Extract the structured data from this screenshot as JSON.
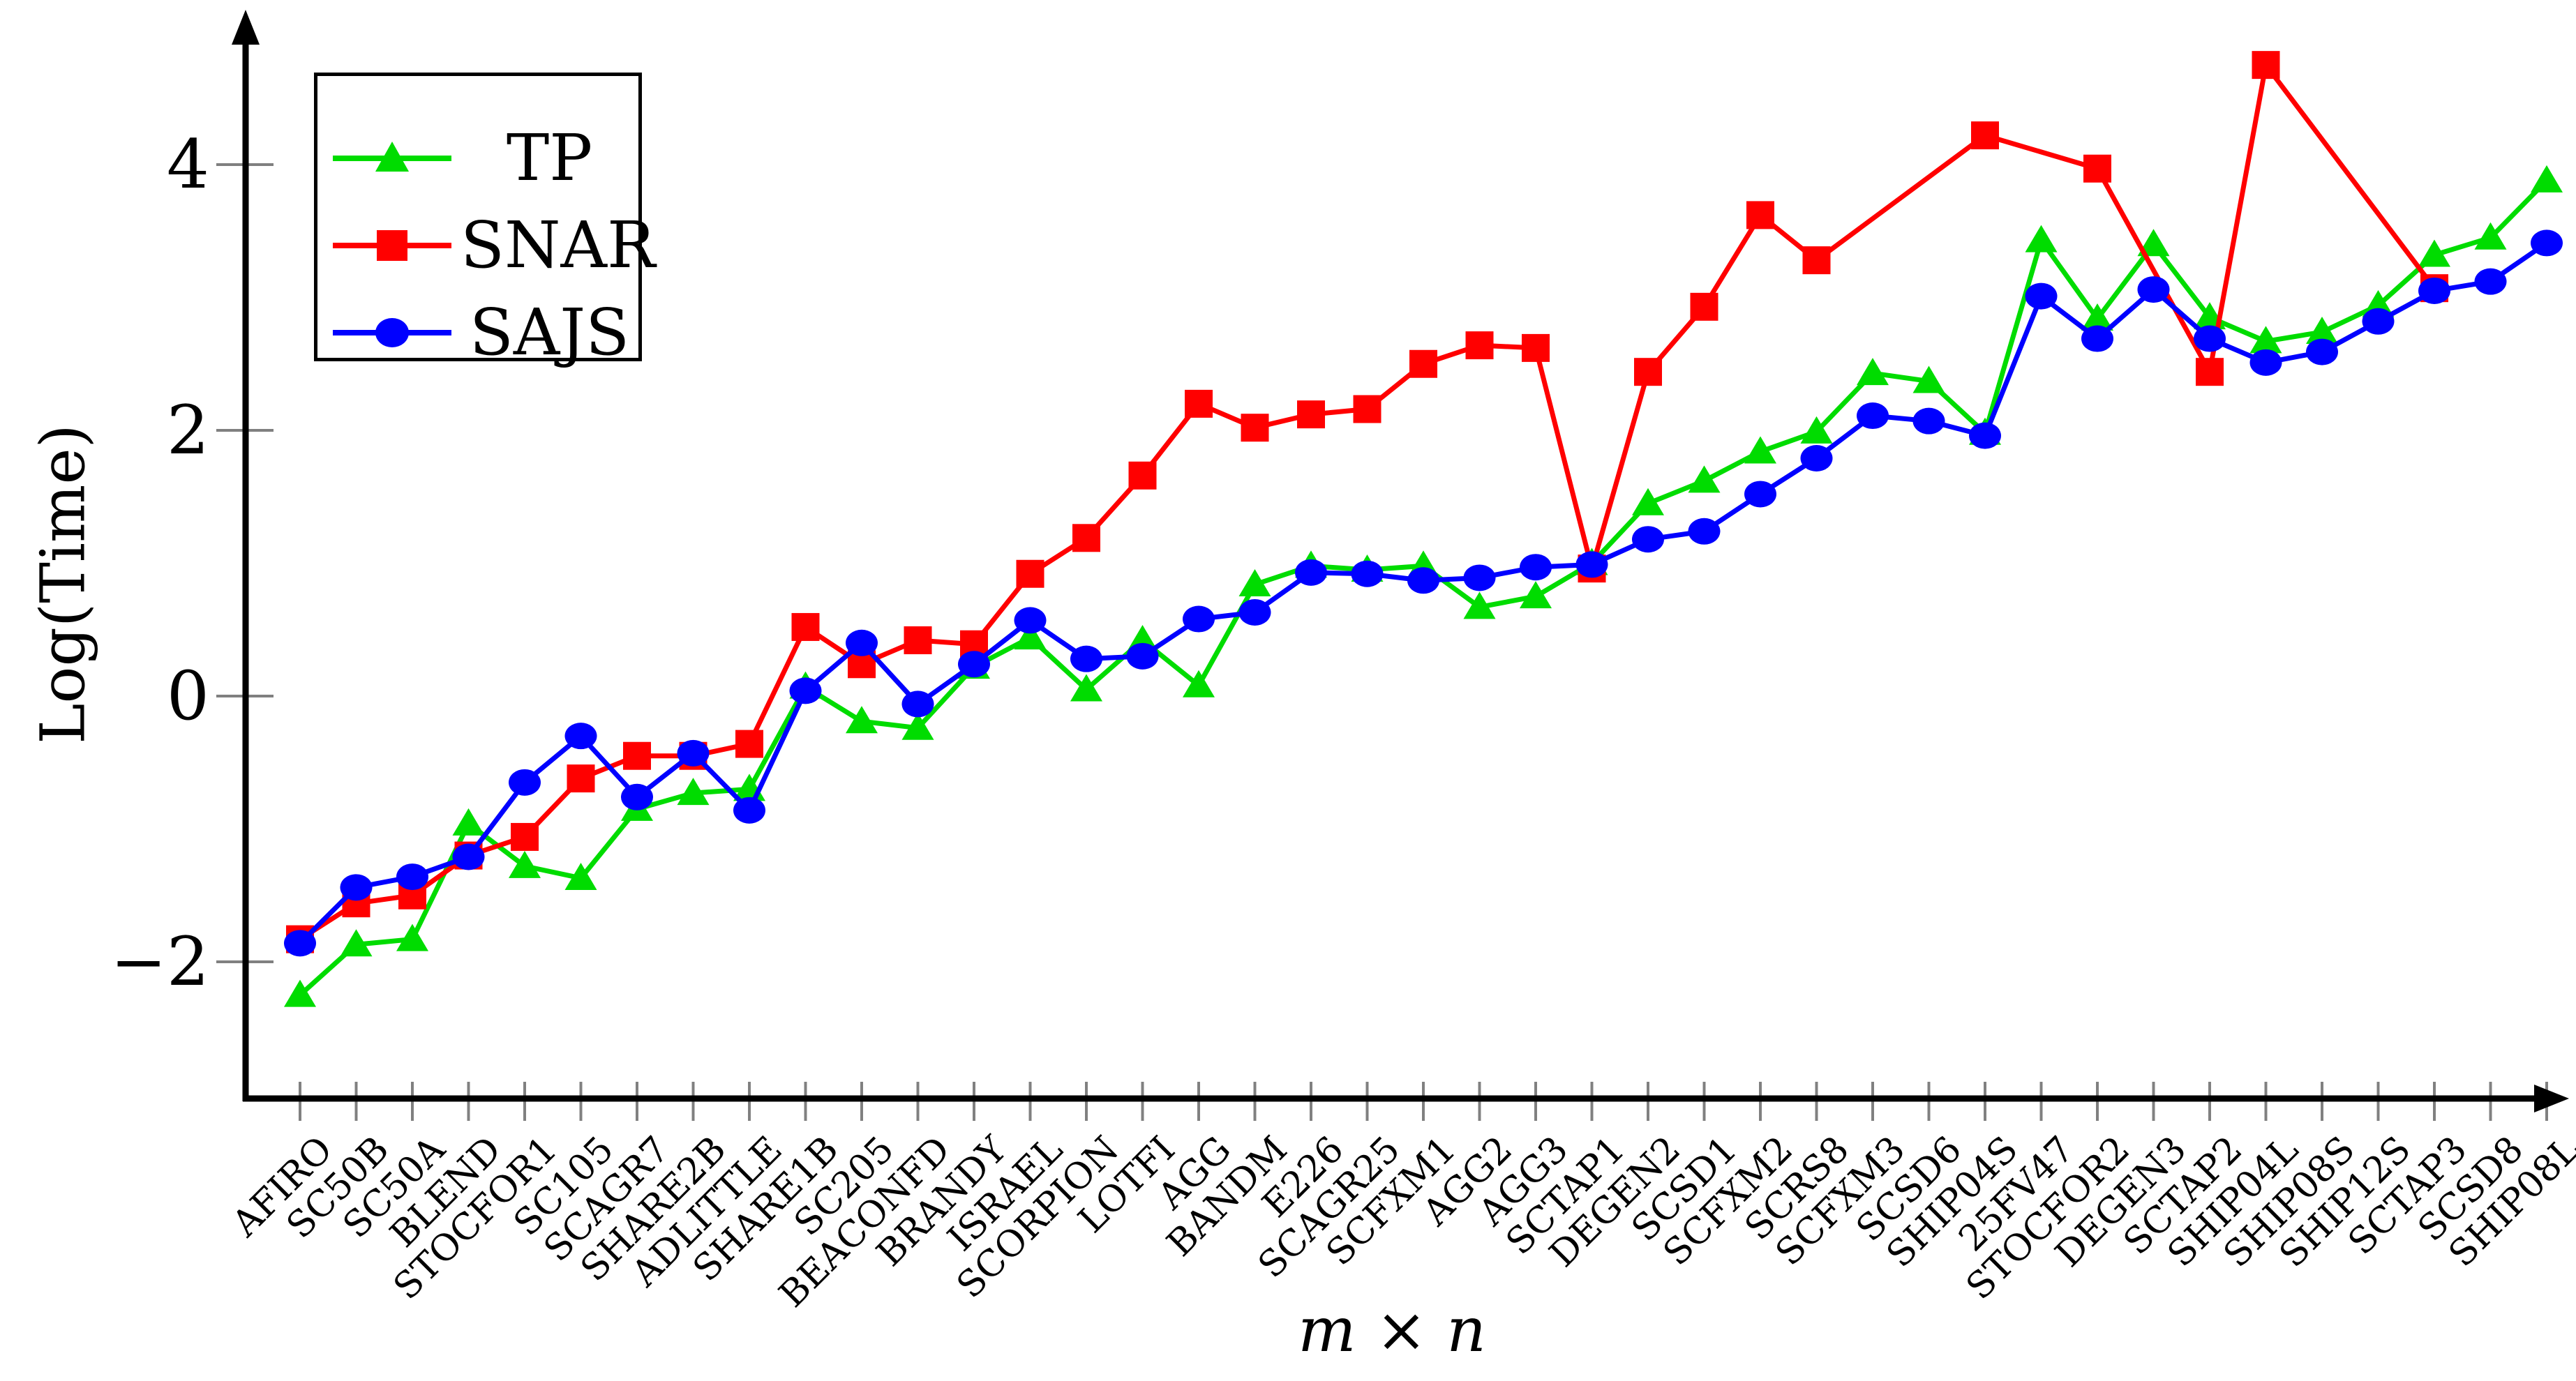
{
  "chart_data": {
    "type": "line",
    "title": "",
    "xlabel": "m × n",
    "ylabel": "Log(Time)",
    "ylim": [
      -3.0,
      5.1
    ],
    "grid": false,
    "legend_position": "top-left",
    "axis_color": "#000000",
    "tick_color": "#808080",
    "background_color": "#ffffff",
    "yticks": {
      "values": [
        4,
        2,
        0,
        -2
      ],
      "labels": [
        "4",
        "2",
        "0",
        "−2"
      ]
    },
    "categories": [
      "AFIRO",
      "SC50B",
      "SC50A",
      "BLEND",
      "STOCFOR1",
      "SC105",
      "SCAGR7",
      "SHARE2B",
      "ADLITTLE",
      "SHARE1B",
      "SC205",
      "BEACONFD",
      "BRANDY",
      "ISRAEL",
      "SCORPION",
      "LOTFI",
      "AGG",
      "BANDM",
      "E226",
      "SCAGR25",
      "SCFXM1",
      "AGG2",
      "AGG3",
      "SCTAP1",
      "DEGEN2",
      "SCSD1",
      "SCFXM2",
      "SCRS8",
      "SCFXM3",
      "SCSD6",
      "SHIP04S",
      "25FV47",
      "STOCFOR2",
      "DEGEN3",
      "SCTAP2",
      "SHIP04L",
      "SHIP08S",
      "SHIP12S",
      "SCTAP3",
      "SCSD8",
      "SHIP08L"
    ],
    "series": [
      {
        "name": "TP",
        "color": "#00dc00",
        "marker": "triangle",
        "values": [
          -2.25,
          -1.87,
          -1.83,
          -0.96,
          -1.28,
          -1.37,
          -0.85,
          -0.73,
          -0.7,
          0.07,
          -0.19,
          -0.24,
          0.22,
          0.44,
          0.05,
          0.42,
          0.08,
          0.84,
          0.98,
          0.95,
          0.98,
          0.67,
          0.75,
          1.0,
          1.45,
          1.62,
          1.84,
          1.99,
          2.43,
          2.37,
          1.98,
          3.43,
          2.84,
          3.4,
          2.85,
          2.67,
          2.74,
          2.94,
          3.32,
          3.45,
          3.88
        ]
      },
      {
        "name": "SNAR",
        "color": "#ff0000",
        "marker": "square",
        "values": [
          -1.83,
          -1.56,
          -1.5,
          -1.2,
          -1.06,
          -0.62,
          -0.45,
          -0.45,
          -0.36,
          0.52,
          0.24,
          0.42,
          0.39,
          0.92,
          1.19,
          1.66,
          2.2,
          2.02,
          2.12,
          2.16,
          2.5,
          2.64,
          2.62,
          0.96,
          2.44,
          2.93,
          3.62,
          3.28,
          null,
          null,
          4.22,
          null,
          3.97,
          null,
          2.44,
          4.75,
          null,
          null,
          3.07,
          null,
          null
        ]
      },
      {
        "name": "SAJS",
        "color": "#0000ff",
        "marker": "circle",
        "values": [
          -1.86,
          -1.44,
          -1.36,
          -1.21,
          -0.65,
          -0.3,
          -0.76,
          -0.43,
          -0.86,
          0.04,
          0.4,
          -0.06,
          0.24,
          0.57,
          0.28,
          0.3,
          0.58,
          0.63,
          0.93,
          0.92,
          0.87,
          0.89,
          0.97,
          0.99,
          1.18,
          1.24,
          1.52,
          1.79,
          2.11,
          2.07,
          1.96,
          3.01,
          2.69,
          3.06,
          2.69,
          2.51,
          2.59,
          2.82,
          3.05,
          3.12,
          3.41
        ]
      }
    ]
  }
}
